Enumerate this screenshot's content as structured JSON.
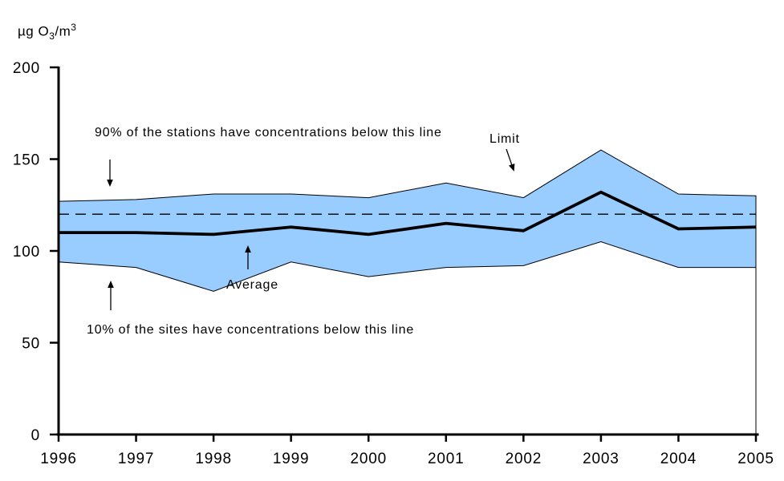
{
  "unit_label": {
    "prefix": "µg O",
    "sub": "3",
    "mid": "/m",
    "sup": "3"
  },
  "annotations": {
    "p90_label": "90% of the stations have concentrations below this line",
    "limit_label": "Limit",
    "average_label": "Average",
    "p10_label": "10% of the sites have concentrations below this line"
  },
  "colors": {
    "band_fill": "#99CCFF",
    "band_outline": "#000000",
    "average_line": "#000000",
    "limit_line": "#000000",
    "axis": "#000000",
    "background": "#FFFFFF"
  },
  "chart_data": {
    "type": "area",
    "title": "µg O3/m3",
    "xlabel": "",
    "ylabel": "µg O3/m3",
    "x": [
      1996,
      1997,
      1998,
      1999,
      2000,
      2001,
      2002,
      2003,
      2004,
      2005
    ],
    "xticks": [
      1996,
      1997,
      1998,
      1999,
      2000,
      2001,
      2002,
      2003,
      2004,
      2005
    ],
    "ylim": [
      0,
      200
    ],
    "yticks": [
      0,
      50,
      100,
      150,
      200
    ],
    "grid": false,
    "legend_position": "none",
    "band_fill": "#99CCFF",
    "series": [
      {
        "name": "90th percentile (90% of the stations below this line)",
        "role": "band_top",
        "values": [
          127,
          128,
          131,
          131,
          129,
          137,
          129,
          155,
          131,
          130
        ]
      },
      {
        "name": "Average",
        "role": "line",
        "values": [
          110,
          110,
          109,
          113,
          109,
          115,
          111,
          132,
          112,
          113
        ]
      },
      {
        "name": "10th percentile (10% of the sites below this line)",
        "role": "band_bottom",
        "values": [
          94,
          91,
          78,
          94,
          86,
          91,
          92,
          105,
          91,
          91
        ]
      }
    ],
    "reference_line": {
      "label": "Limit",
      "value": 120,
      "style": "dashed"
    }
  }
}
